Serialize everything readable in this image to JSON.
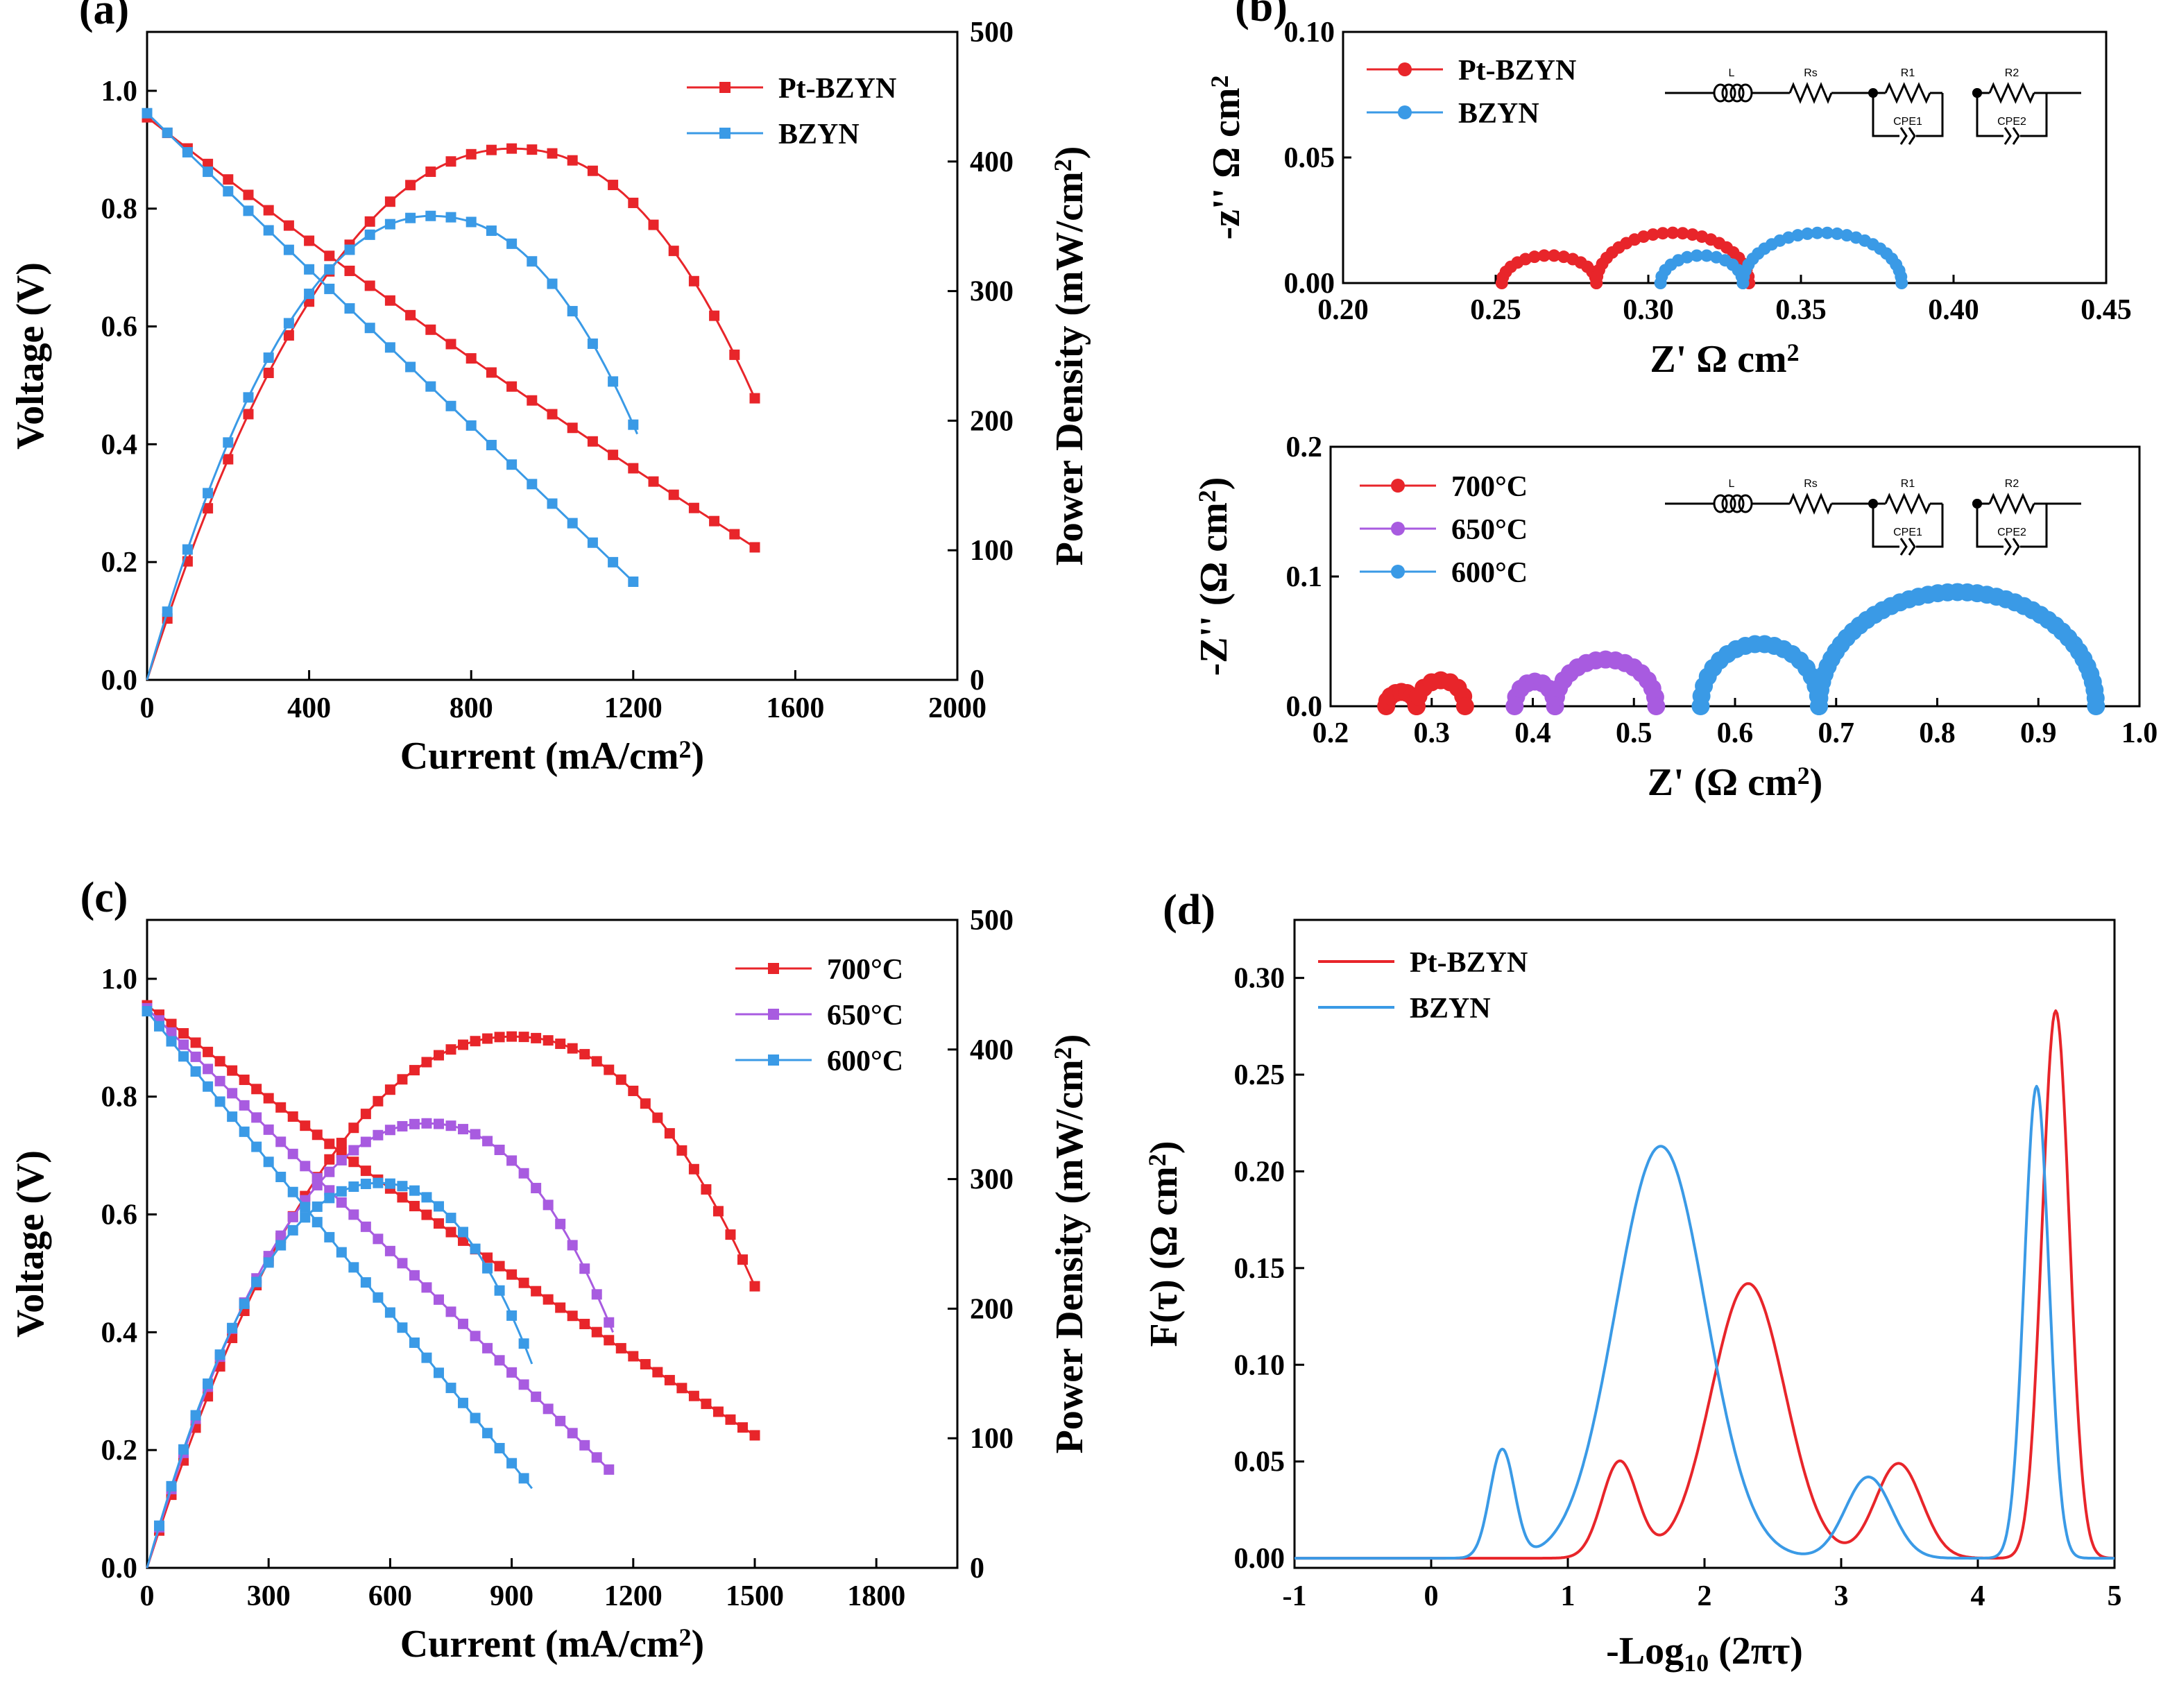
{
  "colors": {
    "red": "#e8252a",
    "blue": "#3a9ae6",
    "purple": "#a85be0",
    "black": "#000000"
  },
  "chart_data": [
    {
      "id": "a",
      "panel_label": "(a)",
      "type": "line",
      "xlabel": "Current (mA/cm",
      "xlabel_sup": "2",
      "xlabel_end": ")",
      "ylabel": "Voltage (V)",
      "y2label": "Power Density (mW/cm",
      "y2label_sup": "2",
      "y2label_end": ")",
      "xlim": [
        0,
        2000
      ],
      "ylim": [
        0,
        1.1
      ],
      "y2lim": [
        0,
        500
      ],
      "xticks": [
        0,
        400,
        800,
        1200,
        1600,
        2000
      ],
      "yticks": [
        0.0,
        0.2,
        0.4,
        0.6,
        0.8,
        1.0
      ],
      "y2ticks": [
        0,
        100,
        200,
        300,
        400,
        500
      ],
      "legend_position": "top-right",
      "series": [
        {
          "name": "Pt-BZYN",
          "color": "#e8252a",
          "iv_ocv": 0.955,
          "iv_x_end": 1500,
          "iv_y_end": 0.225,
          "iv_curv": 0.02,
          "pd_x_end": 1500,
          "pd_peak": 410,
          "pd_peak_x": 900
        },
        {
          "name": "BZYN",
          "color": "#3a9ae6",
          "iv_ocv": 0.962,
          "iv_x_end": 1210,
          "iv_y_end": 0.16,
          "iv_curv": 0.0,
          "pd_x_end": 1210,
          "pd_peak": 358,
          "pd_peak_x": 700
        }
      ]
    },
    {
      "id": "b1",
      "panel_label": "(b)",
      "type": "scatter",
      "xlabel": "Z' Ω cm",
      "xlabel_sup": "2",
      "ylabel": "-z'' Ω cm",
      "ylabel_sup": "2",
      "xlim": [
        0.2,
        0.45
      ],
      "ylim": [
        0,
        0.1
      ],
      "xticks": [
        "0.20",
        "0.25",
        "0.30",
        "0.35",
        "0.40",
        "0.45"
      ],
      "yticks": [
        "0.00",
        "0.05",
        "0.10"
      ],
      "legend_position": "top-left",
      "circuit_labels": [
        "L",
        "Rs",
        "R1",
        "R2",
        "CPE1",
        "CPE2"
      ],
      "series": [
        {
          "name": "Pt-BZYN",
          "color": "#e8252a",
          "arcs": [
            {
              "x0": 0.252,
              "x1": 0.283,
              "h": 0.011
            },
            {
              "x0": 0.283,
              "x1": 0.333,
              "h": 0.02
            }
          ]
        },
        {
          "name": "BZYN",
          "color": "#3a9ae6",
          "arcs": [
            {
              "x0": 0.304,
              "x1": 0.331,
              "h": 0.011
            },
            {
              "x0": 0.331,
              "x1": 0.383,
              "h": 0.02
            }
          ]
        }
      ]
    },
    {
      "id": "b2",
      "type": "scatter",
      "xlabel": "Z' (Ω cm",
      "xlabel_sup": "2",
      "xlabel_end": ")",
      "ylabel": "-Z'' (Ω cm",
      "ylabel_sup": "2",
      "ylabel_end": ")",
      "xlim": [
        0.2,
        1.0
      ],
      "ylim": [
        0,
        0.2
      ],
      "xticks": [
        "0.2",
        "0.3",
        "0.4",
        "0.5",
        "0.6",
        "0.7",
        "0.8",
        "0.9",
        "1.0"
      ],
      "yticks": [
        "0.0",
        "0.1",
        "0.2"
      ],
      "legend_position": "top-left",
      "circuit_labels": [
        "L",
        "Rs",
        "R1",
        "R2",
        "CPE1",
        "CPE2"
      ],
      "series": [
        {
          "name": "700°C",
          "color": "#e8252a",
          "arcs": [
            {
              "x0": 0.255,
              "x1": 0.285,
              "h": 0.011
            },
            {
              "x0": 0.285,
              "x1": 0.333,
              "h": 0.02
            }
          ]
        },
        {
          "name": "650°C",
          "color": "#a85be0",
          "arcs": [
            {
              "x0": 0.382,
              "x1": 0.422,
              "h": 0.019
            },
            {
              "x0": 0.422,
              "x1": 0.522,
              "h": 0.036
            }
          ]
        },
        {
          "name": "600°C",
          "color": "#3a9ae6",
          "arcs": [
            {
              "x0": 0.566,
              "x1": 0.683,
              "h": 0.048
            },
            {
              "x0": 0.683,
              "x1": 0.957,
              "h": 0.088
            }
          ]
        }
      ]
    },
    {
      "id": "c",
      "panel_label": "(c)",
      "type": "line",
      "xlabel": "Current (mA/cm",
      "xlabel_sup": "2",
      "xlabel_end": ")",
      "ylabel": "Voltage (V)",
      "y2label": "Power Density (mW/cm",
      "y2label_sup": "2",
      "y2label_end": ")",
      "xlim": [
        0,
        2000
      ],
      "ylim": [
        0,
        1.1
      ],
      "y2lim": [
        0,
        500
      ],
      "xticks": [
        0,
        300,
        600,
        900,
        1200,
        1500,
        1800
      ],
      "yticks": [
        0.0,
        0.2,
        0.4,
        0.6,
        0.8,
        1.0
      ],
      "y2ticks": [
        0,
        100,
        200,
        300,
        400,
        500
      ],
      "legend_position": "top-right",
      "series": [
        {
          "name": "700°C",
          "color": "#e8252a",
          "iv_ocv": 0.955,
          "iv_x_end": 1500,
          "iv_y_end": 0.225,
          "iv_curv": 0.02,
          "pd_x_end": 1500,
          "pd_peak": 410,
          "pd_peak_x": 900
        },
        {
          "name": "650°C",
          "color": "#a85be0",
          "iv_ocv": 0.95,
          "iv_x_end": 1150,
          "iv_y_end": 0.16,
          "iv_curv": 0.0,
          "pd_x_end": 1150,
          "pd_peak": 343,
          "pd_peak_x": 690
        },
        {
          "name": "600°C",
          "color": "#3a9ae6",
          "iv_ocv": 0.945,
          "iv_x_end": 950,
          "iv_y_end": 0.135,
          "iv_curv": 0.0,
          "pd_x_end": 950,
          "pd_peak": 297,
          "pd_peak_x": 570
        }
      ]
    },
    {
      "id": "d",
      "panel_label": "(d)",
      "type": "line",
      "xlabel": "-Log",
      "xlabel_sub": "10",
      "xlabel_end": " (2πτ)",
      "ylabel": "F(τ)  (Ω cm",
      "ylabel_sup": "2",
      "ylabel_end": ")",
      "xlim": [
        -1,
        5
      ],
      "ylim": [
        -0.005,
        0.33
      ],
      "xticks": [
        -1,
        0,
        1,
        2,
        3,
        4,
        5
      ],
      "yticks": [
        "0.00",
        "0.05",
        "0.10",
        "0.15",
        "0.20",
        "0.25",
        "0.30"
      ],
      "legend_position": "top-left",
      "series": [
        {
          "name": "Pt-BZYN",
          "color": "#e8252a",
          "peaks": [
            {
              "mu": 1.38,
              "a": 0.05,
              "s": 0.13
            },
            {
              "mu": 2.32,
              "a": 0.142,
              "s": 0.27
            },
            {
              "mu": 3.42,
              "a": 0.049,
              "s": 0.17
            },
            {
              "mu": 4.57,
              "a": 0.283,
              "s": 0.1
            }
          ]
        },
        {
          "name": "BZYN",
          "color": "#3a9ae6",
          "peaks": [
            {
              "mu": 0.52,
              "a": 0.056,
              "s": 0.09
            },
            {
              "mu": 1.68,
              "a": 0.213,
              "s": 0.33
            },
            {
              "mu": 3.2,
              "a": 0.042,
              "s": 0.17
            },
            {
              "mu": 4.43,
              "a": 0.244,
              "s": 0.09
            }
          ]
        }
      ]
    }
  ]
}
